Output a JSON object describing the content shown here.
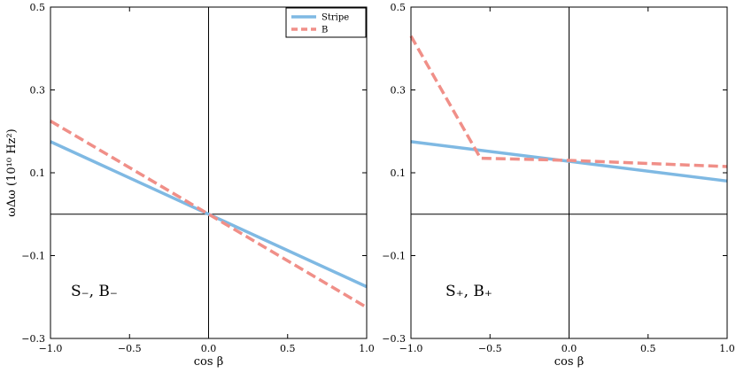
{
  "figure": {
    "ylabel": "ωΔω (10¹⁰ Hz²)",
    "legend": [
      {
        "name": "Stripe",
        "color": "#7fb9e3",
        "style": "solid"
      },
      {
        "name": "B",
        "color": "#f08f88",
        "style": "dashed"
      }
    ]
  },
  "chart_data": [
    {
      "type": "line",
      "panel_label": "S₋,  B₋",
      "xlabel": "cos β",
      "ylabel": "ωΔω (10¹⁰ Hz²)",
      "xlim": [
        -1.0,
        1.0
      ],
      "ylim": [
        -0.3,
        0.5
      ],
      "xticks": [
        "−1.0",
        "−0.5",
        "0.0",
        "0.5",
        "1.0"
      ],
      "xtick_values": [
        -1.0,
        -0.5,
        0.0,
        0.5,
        1.0
      ],
      "yticks": [
        "0.5",
        "0.3",
        "0.1",
        "−0.1",
        "−0.3"
      ],
      "ytick_values": [
        0.5,
        0.3,
        0.1,
        -0.1,
        -0.3
      ],
      "grid": false,
      "reference_lines": {
        "x": 0,
        "y": 0
      },
      "legend_position": "top-right",
      "series": [
        {
          "name": "Stripe",
          "color": "#7fb9e3",
          "style": "solid",
          "x": [
            -1.0,
            1.0
          ],
          "y": [
            0.175,
            -0.175
          ]
        },
        {
          "name": "B",
          "color": "#f08f88",
          "style": "dashed",
          "x": [
            -1.0,
            1.0
          ],
          "y": [
            0.225,
            -0.225
          ]
        }
      ]
    },
    {
      "type": "line",
      "panel_label": "S₊,  B₊",
      "xlabel": "cos β",
      "xlim": [
        -1.0,
        1.0
      ],
      "ylim": [
        -0.3,
        0.5
      ],
      "xticks": [
        "−1.0",
        "−0.5",
        "0.0",
        "0.5",
        "1.0"
      ],
      "xtick_values": [
        -1.0,
        -0.5,
        0.0,
        0.5,
        1.0
      ],
      "yticks": [
        "0.5",
        "0.3",
        "0.1",
        "−0.1",
        "−0.3"
      ],
      "ytick_values": [
        0.5,
        0.3,
        0.1,
        -0.1,
        -0.3
      ],
      "grid": false,
      "reference_lines": {
        "x": 0,
        "y": 0
      },
      "series": [
        {
          "name": "Stripe",
          "color": "#7fb9e3",
          "style": "solid",
          "x": [
            -1.0,
            1.0
          ],
          "y": [
            0.175,
            0.08
          ]
        },
        {
          "name": "B",
          "color": "#f08f88",
          "style": "dashed",
          "x": [
            -1.0,
            -0.56,
            0.0,
            1.0
          ],
          "y": [
            0.43,
            0.135,
            0.13,
            0.115
          ]
        }
      ]
    }
  ]
}
